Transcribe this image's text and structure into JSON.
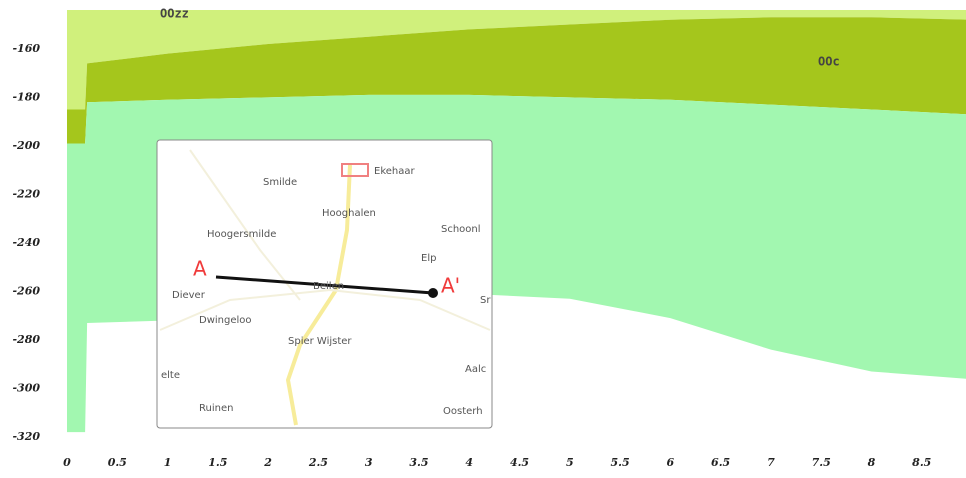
{
  "chart_data": {
    "type": "layers",
    "x": [
      0,
      0.18,
      0.2,
      1,
      2,
      3,
      4,
      5,
      6,
      7,
      8,
      8.95
    ],
    "series": [
      {
        "name": "OOzz",
        "color": "#d0f07c",
        "values": [
          -185,
          -185,
          -166,
          -162,
          -158,
          -155,
          -152,
          -150,
          -148,
          -147,
          -147,
          -148
        ]
      },
      {
        "name": "OOc",
        "color": "#a5c61c",
        "values": [
          -199,
          -199,
          -182,
          -181,
          -180,
          -179,
          -179,
          -180,
          -181,
          -183,
          -185,
          -187
        ]
      },
      {
        "color": "#a2f7b0",
        "values": [
          -318,
          -318,
          -273,
          -272,
          -270,
          -264,
          -261,
          -263,
          -271,
          -284,
          -293,
          -296
        ]
      }
    ],
    "xlim": [
      0,
      8.95
    ],
    "ylim": [
      -320,
      -144
    ],
    "xticks": [
      0,
      0.5,
      1,
      1.5,
      2,
      2.5,
      3,
      3.5,
      4,
      4.5,
      5,
      5.5,
      6,
      6.5,
      7,
      7.5,
      8,
      8.5
    ],
    "yticks": [
      -160,
      -180,
      -200,
      -220,
      -240,
      -260,
      -280,
      -300,
      -320
    ]
  },
  "inset_map": {
    "start": "A",
    "end": "A'",
    "places": [
      "Smilde",
      "Ekehaar",
      "Hooghalen",
      "Hoogersmilde",
      "Schoonl",
      "Elp",
      "Diever",
      "Beilen",
      "Sr",
      "Dwingeloo",
      "Spier Wijster",
      "Aalc",
      "elte",
      "Ruinen",
      "Oosterh"
    ]
  }
}
